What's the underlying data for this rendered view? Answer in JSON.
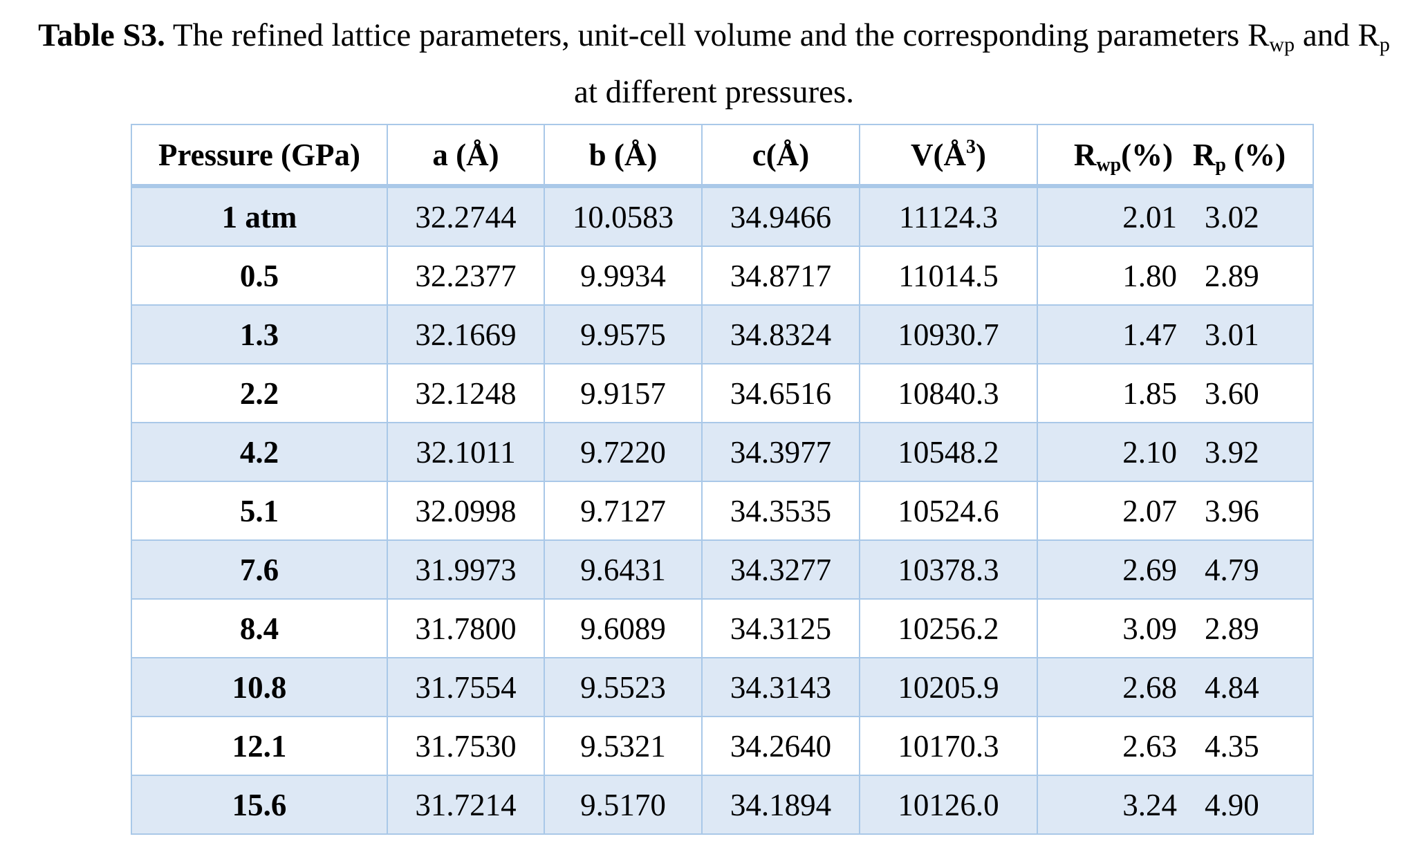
{
  "caption": {
    "label": "Table S3.",
    "text_line1": "The refined lattice parameters, unit-cell volume and the corresponding parameters R",
    "rwp_sub": "wp",
    "and_text": "and R",
    "rp_sub": "p",
    "text_line2": "at different pressures."
  },
  "table": {
    "headers": {
      "pressure": "Pressure (GPa)",
      "a": "a (Å)",
      "b": "b (Å)",
      "c": "c(Å)",
      "v_prefix": "V(Å",
      "v_sup": "3",
      "v_suffix": ")",
      "rwp_prefix": "R",
      "rwp_sub": "wp",
      "rwp_suffix": "(%)",
      "rp_prefix": "R",
      "rp_sub": "p",
      "rp_suffix": " (%)"
    },
    "rows": [
      {
        "pressure": "1 atm",
        "a": "32.2744",
        "b": "10.0583",
        "c": "34.9466",
        "v": "11124.3",
        "rwp": "2.01",
        "rp": "3.02"
      },
      {
        "pressure": "0.5",
        "a": "32.2377",
        "b": "9.9934",
        "c": "34.8717",
        "v": "11014.5",
        "rwp": "1.80",
        "rp": "2.89"
      },
      {
        "pressure": "1.3",
        "a": "32.1669",
        "b": "9.9575",
        "c": "34.8324",
        "v": "10930.7",
        "rwp": "1.47",
        "rp": "3.01"
      },
      {
        "pressure": "2.2",
        "a": "32.1248",
        "b": "9.9157",
        "c": "34.6516",
        "v": "10840.3",
        "rwp": "1.85",
        "rp": "3.60"
      },
      {
        "pressure": "4.2",
        "a": "32.1011",
        "b": "9.7220",
        "c": "34.3977",
        "v": "10548.2",
        "rwp": "2.10",
        "rp": "3.92"
      },
      {
        "pressure": "5.1",
        "a": "32.0998",
        "b": "9.7127",
        "c": "34.3535",
        "v": "10524.6",
        "rwp": "2.07",
        "rp": "3.96"
      },
      {
        "pressure": "7.6",
        "a": "31.9973",
        "b": "9.6431",
        "c": "34.3277",
        "v": "10378.3",
        "rwp": "2.69",
        "rp": "4.79"
      },
      {
        "pressure": "8.4",
        "a": "31.7800",
        "b": "9.6089",
        "c": "34.3125",
        "v": "10256.2",
        "rwp": "3.09",
        "rp": "2.89"
      },
      {
        "pressure": "10.8",
        "a": "31.7554",
        "b": "9.5523",
        "c": "34.3143",
        "v": "10205.9",
        "rwp": "2.68",
        "rp": "4.84"
      },
      {
        "pressure": "12.1",
        "a": "31.7530",
        "b": "9.5321",
        "c": "34.2640",
        "v": "10170.3",
        "rwp": "2.63",
        "rp": "4.35"
      },
      {
        "pressure": "15.6",
        "a": "31.7214",
        "b": "9.5170",
        "c": "34.1894",
        "v": "10126.0",
        "rwp": "3.24",
        "rp": "4.90"
      }
    ]
  },
  "colors": {
    "shaded_row": "#dde8f5",
    "border": "#a9c8e8"
  }
}
